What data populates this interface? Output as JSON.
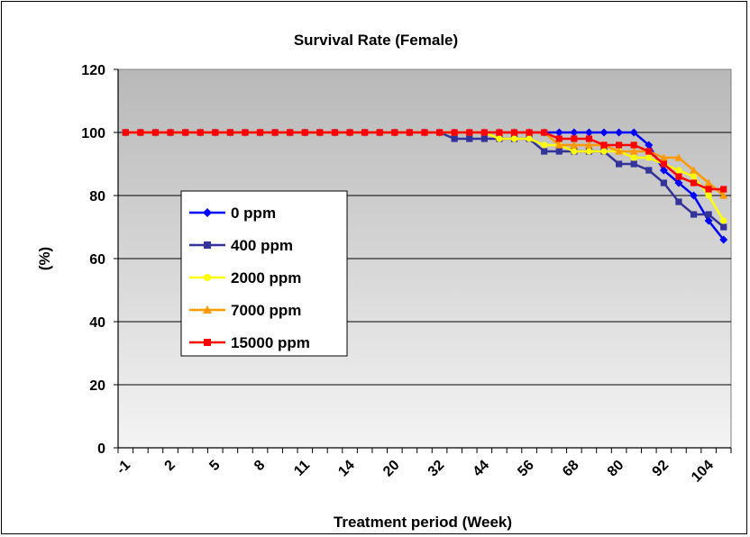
{
  "chart_data": {
    "type": "line",
    "title": "Survival Rate (Female)",
    "xlabel": "Treatment period (Week)",
    "ylabel": "(%)",
    "ylim": [
      0,
      120
    ],
    "yticks": [
      0,
      20,
      40,
      60,
      80,
      100,
      120
    ],
    "x_tick_labels": [
      "-1",
      "2",
      "5",
      "8",
      "11",
      "14",
      "20",
      "32",
      "44",
      "56",
      "68",
      "80",
      "92",
      "104"
    ],
    "grid": true,
    "legend_position": "left-middle",
    "series": [
      {
        "name": "0 ppm",
        "color": "#0000FF",
        "marker": "diamond",
        "values": [
          100,
          100,
          100,
          100,
          100,
          100,
          100,
          100,
          100,
          100,
          100,
          100,
          100,
          100,
          100,
          100,
          100,
          100,
          100,
          100,
          100,
          100,
          100,
          100,
          100,
          100,
          100,
          100,
          100,
          100,
          100,
          100,
          100,
          100,
          100,
          96,
          88,
          84,
          80,
          72,
          66
        ]
      },
      {
        "name": "400 ppm",
        "color": "#333399",
        "marker": "square",
        "values": [
          100,
          100,
          100,
          100,
          100,
          100,
          100,
          100,
          100,
          100,
          100,
          100,
          100,
          100,
          100,
          100,
          100,
          100,
          100,
          100,
          100,
          100,
          98,
          98,
          98,
          98,
          98,
          98,
          94,
          94,
          94,
          94,
          94,
          90,
          90,
          88,
          84,
          78,
          74,
          74,
          70
        ]
      },
      {
        "name": "2000 ppm",
        "color": "#FFFF00",
        "marker": "circle",
        "values": [
          100,
          100,
          100,
          100,
          100,
          100,
          100,
          100,
          100,
          100,
          100,
          100,
          100,
          100,
          100,
          100,
          100,
          100,
          100,
          100,
          100,
          100,
          100,
          100,
          100,
          98,
          98,
          98,
          96,
          96,
          94,
          94,
          94,
          94,
          92,
          92,
          90,
          88,
          86,
          80,
          72
        ]
      },
      {
        "name": "7000 ppm",
        "color": "#FF9900",
        "marker": "triangle",
        "values": [
          100,
          100,
          100,
          100,
          100,
          100,
          100,
          100,
          100,
          100,
          100,
          100,
          100,
          100,
          100,
          100,
          100,
          100,
          100,
          100,
          100,
          100,
          100,
          100,
          100,
          100,
          100,
          100,
          100,
          96,
          96,
          96,
          96,
          94,
          94,
          94,
          92,
          92,
          88,
          84,
          80
        ]
      },
      {
        "name": "15000 ppm",
        "color": "#FF0000",
        "marker": "square",
        "values": [
          100,
          100,
          100,
          100,
          100,
          100,
          100,
          100,
          100,
          100,
          100,
          100,
          100,
          100,
          100,
          100,
          100,
          100,
          100,
          100,
          100,
          100,
          100,
          100,
          100,
          100,
          100,
          100,
          100,
          98,
          98,
          98,
          96,
          96,
          96,
          94,
          90,
          86,
          84,
          82,
          82
        ]
      }
    ]
  }
}
